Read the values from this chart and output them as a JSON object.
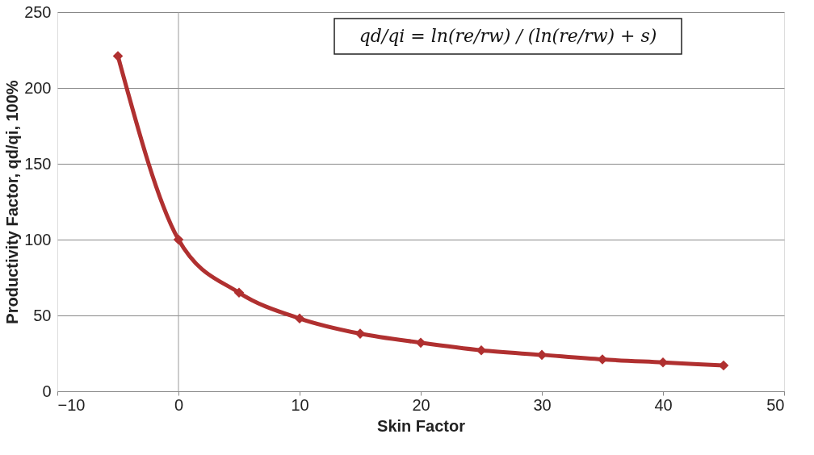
{
  "chart_data": {
    "type": "line",
    "xlabel": "Skin Factor",
    "ylabel": "Productivity Factor, qd/qi, 100%",
    "annotations": [
      "qd/qi = ln(re/rw) / (ln(re/rw) + s)"
    ],
    "x": [
      -5,
      0,
      5,
      10,
      15,
      20,
      25,
      30,
      35,
      40,
      45
    ],
    "series": [
      {
        "color": "#b03030",
        "values": [
          221,
          100,
          65,
          48,
          38,
          32,
          27,
          24,
          21,
          19,
          17
        ]
      }
    ],
    "xlim": [
      -10,
      50
    ],
    "xticks": [
      -10,
      0,
      10,
      20,
      30,
      40,
      50
    ],
    "ylim": [
      0,
      250
    ],
    "yticks": [
      0,
      50,
      100,
      150,
      200,
      250
    ],
    "grid": "y",
    "marker": "diamond",
    "line_style": "solid",
    "ref_lines": [
      {
        "axis": "x",
        "value": 0,
        "color": "#999999"
      }
    ]
  }
}
